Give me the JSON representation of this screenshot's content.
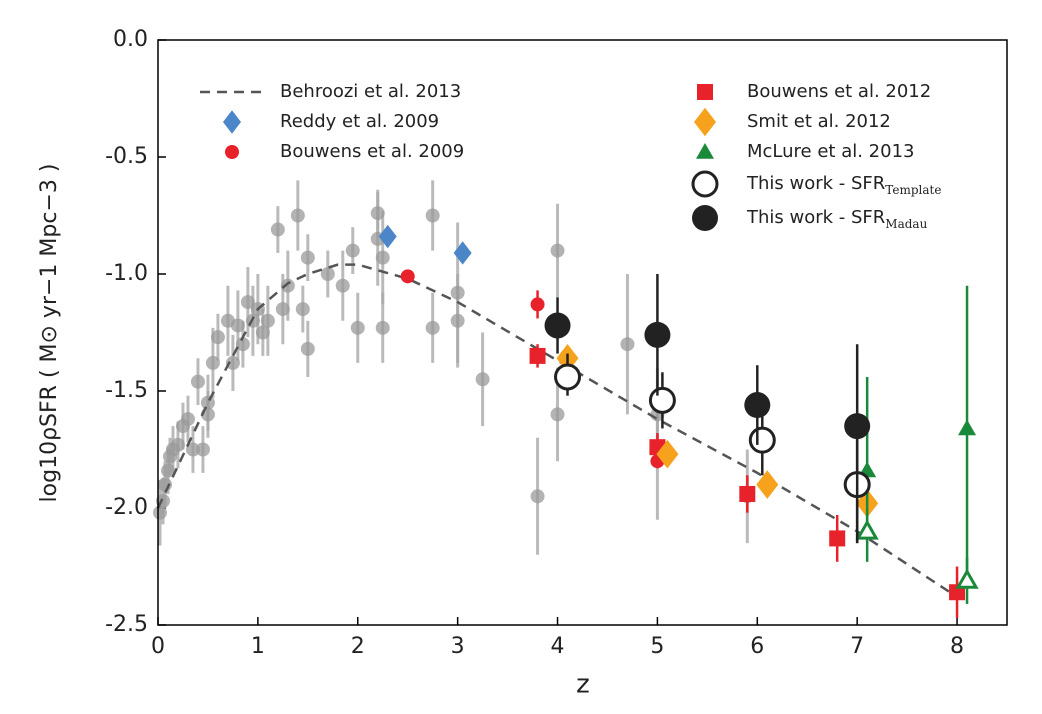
{
  "chart_data": {
    "type": "scatter",
    "x_label": "z",
    "y_label": "log10ρSFR ( M⊙ yr−1 Mpc−3 )",
    "xlim": [
      0,
      8.5
    ],
    "ylim": [
      -2.5,
      0
    ],
    "xticks": [
      0,
      1,
      2,
      3,
      4,
      5,
      6,
      7,
      8
    ],
    "yticks": [
      {
        "value": 0,
        "label": "0.0"
      },
      -0.5,
      {
        "value": -1,
        "label": "-1.0"
      },
      -1.5,
      {
        "value": -2,
        "label": "-2.0"
      },
      -2.5
    ],
    "series": [
      {
        "color": "#999999",
        "marker": "circle",
        "filled": true,
        "x": [
          0.02,
          0.05,
          0.07,
          0.1,
          0.12,
          0.15,
          0.2,
          0.25,
          0.3,
          0.35,
          0.4,
          0.45,
          0.5,
          0.5,
          0.55,
          0.6,
          0.7,
          0.75,
          0.8,
          0.85,
          0.9,
          0.95,
          1.0,
          1.05,
          1.1,
          1.2,
          1.25,
          1.3,
          1.4,
          1.45,
          1.5,
          1.5,
          1.7,
          1.85,
          1.95,
          2.0,
          2.2,
          2.2,
          2.25,
          2.25,
          2.75,
          2.75,
          3.0,
          3.0,
          3.25,
          3.8,
          4.0,
          4.0,
          4.7,
          5.0,
          5.0,
          5.9
        ],
        "values": [
          -2.02,
          -1.97,
          -1.9,
          -1.84,
          -1.78,
          -1.75,
          -1.73,
          -1.65,
          -1.62,
          -1.75,
          -1.46,
          -1.75,
          -1.6,
          -1.55,
          -1.38,
          -1.27,
          -1.2,
          -1.38,
          -1.22,
          -1.3,
          -1.12,
          -1.2,
          -1.15,
          -1.25,
          -1.2,
          -0.81,
          -1.15,
          -1.05,
          -0.75,
          -1.15,
          -0.93,
          -1.32,
          -1.0,
          -1.05,
          -0.9,
          -1.23,
          -0.85,
          -0.74,
          -0.93,
          -1.23,
          -0.75,
          -1.23,
          -1.08,
          -1.2,
          -1.45,
          -1.95,
          -0.9,
          -1.6,
          -1.3,
          -1.6,
          -1.75,
          -1.95
        ],
        "yerr": [
          0.14,
          0.1,
          0.1,
          0.1,
          0.08,
          0.1,
          0.1,
          0.1,
          0.1,
          0.1,
          0.1,
          0.1,
          0.1,
          0.12,
          0.15,
          0.1,
          0.15,
          0.12,
          0.15,
          0.1,
          0.15,
          0.15,
          0.15,
          0.1,
          0.15,
          0.1,
          0.15,
          0.15,
          0.15,
          0.1,
          0.1,
          0.12,
          0.1,
          0.15,
          0.1,
          0.15,
          0.2,
          0.1,
          0.2,
          0.15,
          0.15,
          0.15,
          0.3,
          0.2,
          0.2,
          0.25,
          0.2,
          0.2,
          0.3,
          0.2,
          0.3,
          0.2
        ]
      },
      {
        "name": "Behroozi et al. 2013",
        "kind": "line",
        "dashed": true,
        "color": "#555555",
        "x": [
          0,
          0.5,
          1,
          1.3,
          1.5,
          1.8,
          2,
          2.5,
          3,
          4,
          5,
          6,
          7,
          8
        ],
        "values": [
          -2.0,
          -1.55,
          -1.15,
          -1.04,
          -1.0,
          -0.96,
          -0.96,
          -1.02,
          -1.12,
          -1.37,
          -1.62,
          -1.85,
          -2.1,
          -2.38
        ]
      },
      {
        "name": "Reddy et al. 2009",
        "color": "#4a86c8",
        "marker": "diamond",
        "filled": true,
        "x": [
          2.3,
          3.05
        ],
        "values": [
          -0.84,
          -0.91
        ]
      },
      {
        "name": "Bouwens et al. 2009",
        "color": "#e8222a",
        "marker": "circle",
        "filled": true,
        "x": [
          2.5,
          3.8,
          5.0
        ],
        "values": [
          -1.01,
          -1.13,
          -1.8
        ],
        "yerr": [
          0.02,
          0.06,
          0.03
        ]
      },
      {
        "name": "Bouwens et al. 2012",
        "color": "#e8222a",
        "marker": "square",
        "filled": true,
        "x": [
          3.8,
          5.0,
          5.9,
          6.8,
          8.0
        ],
        "values": [
          -1.35,
          -1.74,
          -1.94,
          -2.13,
          -2.36
        ],
        "yerr": [
          0.05,
          0.06,
          0.08,
          0.1,
          0.11
        ]
      },
      {
        "name": "Smit et al. 2012",
        "color": "#f7a21c",
        "marker": "diamond",
        "filled": true,
        "x": [
          4.1,
          5.1,
          6.1,
          7.1
        ],
        "values": [
          -1.36,
          -1.77,
          -1.9,
          -1.98
        ]
      },
      {
        "name": "McLure et al. 2013",
        "color": "#1a8a3a",
        "marker": "triangle",
        "filled": true,
        "x": [
          7.1,
          8.1
        ],
        "values": [
          -1.84,
          -1.66
        ],
        "yerr": [
          [
            0.28,
            0.4
          ],
          [
            0.64,
            0.61
          ]
        ]
      },
      {
        "color": "#1a8a3a",
        "marker": "triangle",
        "filled": false,
        "x": [
          7.1,
          8.1
        ],
        "values": [
          -2.1,
          -2.31
        ],
        "yerr": [
          [
            0.13,
            0.1
          ],
          [
            0.1,
            0.1
          ]
        ]
      },
      {
        "name": "This work - SFR",
        "name_subscript": "Template",
        "color": "#222222",
        "marker": "circle",
        "filled": false,
        "x": [
          4.1,
          5.05,
          6.05,
          7.0
        ],
        "values": [
          -1.44,
          -1.54,
          -1.71,
          -1.9
        ],
        "yerr": [
          [
            0.08,
            0.1
          ],
          [
            0.12,
            0.12
          ],
          [
            0.15,
            0.12
          ],
          [
            0.25,
            0.25
          ]
        ]
      },
      {
        "name": "This work - SFR",
        "name_subscript": "Madau",
        "color": "#222222",
        "marker": "circle",
        "filled": true,
        "x": [
          4.0,
          5.0,
          6.0,
          7.0
        ],
        "values": [
          -1.22,
          -1.26,
          -1.56,
          -1.65
        ],
        "yerr": [
          [
            0.12,
            0.12
          ],
          [
            0.26,
            0.26
          ],
          [
            0.17,
            0.17
          ],
          [
            0.5,
            0.35
          ]
        ]
      }
    ]
  }
}
